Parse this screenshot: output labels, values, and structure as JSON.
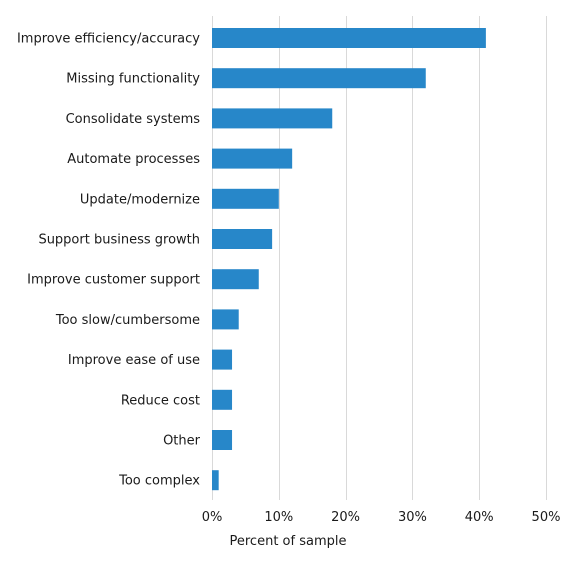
{
  "chart_data": {
    "type": "bar",
    "orientation": "horizontal",
    "categories": [
      "Improve efficiency/accuracy",
      "Missing functionality",
      "Consolidate systems",
      "Automate processes",
      "Update/modernize",
      "Support business growth",
      "Improve customer support",
      "Too slow/cumbersome",
      "Improve ease of use",
      "Reduce cost",
      "Other",
      "Too complex"
    ],
    "values": [
      41,
      32,
      18,
      12,
      10,
      9,
      7,
      4,
      3,
      3,
      3,
      1
    ],
    "xlabel": "Percent of sample",
    "xlim": [
      0,
      50
    ],
    "xticks": [
      0,
      10,
      20,
      30,
      40,
      50
    ],
    "xtick_labels": [
      "0%",
      "10%",
      "20%",
      "30%",
      "40%",
      "50%"
    ],
    "grid": "vertical",
    "legend": "none",
    "bar_color": "#2787c9",
    "grid_color": "#d9d9d9"
  }
}
